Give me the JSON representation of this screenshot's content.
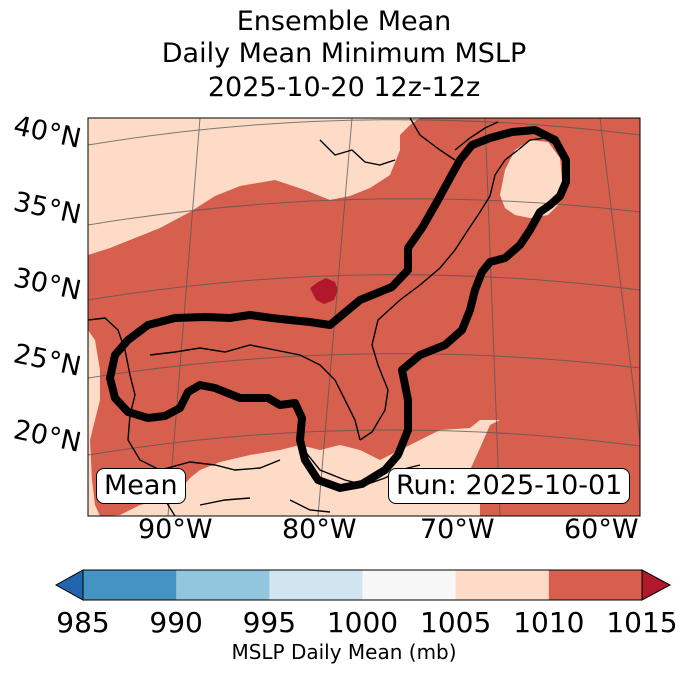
{
  "title": {
    "line1": "Ensemble Mean",
    "line2": "Daily Mean Minimum MSLP",
    "line3": "2025-10-20 12z-12z"
  },
  "map": {
    "lat_labels": [
      "40°N",
      "35°N",
      "30°N",
      "25°N",
      "20°N"
    ],
    "lon_labels": [
      "90°W",
      "80°W",
      "70°W",
      "60°W"
    ],
    "mean_label": "Mean",
    "run_label": "Run: 2025-10-01",
    "colors": {
      "high": "#d6604d",
      "mid": "#fddbc7",
      "peak": "#b2182b",
      "contour": "#000000",
      "coast": "#000000",
      "grid": "#555555"
    }
  },
  "colorbar": {
    "ticks": [
      "985",
      "990",
      "995",
      "1000",
      "1005",
      "1010",
      "1015"
    ],
    "colors": [
      "#2166ac",
      "#4393c3",
      "#92c5de",
      "#d1e5f0",
      "#f7f7f7",
      "#fddbc7",
      "#d6604d",
      "#b2182b"
    ],
    "label": "MSLP Daily Mean (mb)"
  }
}
